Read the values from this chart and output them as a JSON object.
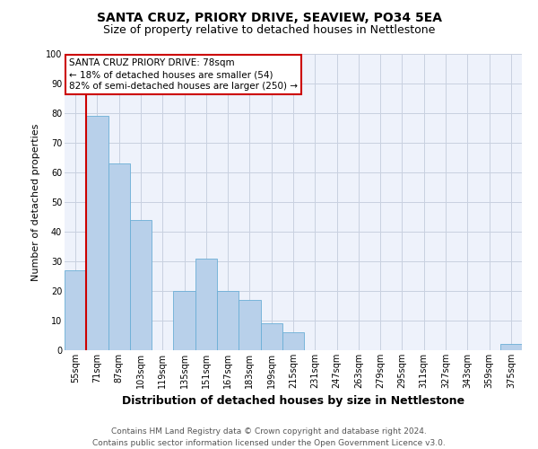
{
  "title": "SANTA CRUZ, PRIORY DRIVE, SEAVIEW, PO34 5EA",
  "subtitle": "Size of property relative to detached houses in Nettlestone",
  "xlabel": "Distribution of detached houses by size in Nettlestone",
  "ylabel": "Number of detached properties",
  "footer_line1": "Contains HM Land Registry data © Crown copyright and database right 2024.",
  "footer_line2": "Contains public sector information licensed under the Open Government Licence v3.0.",
  "annotation_line1": "SANTA CRUZ PRIORY DRIVE: 78sqm",
  "annotation_line2": "← 18% of detached houses are smaller (54)",
  "annotation_line3": "82% of semi-detached houses are larger (250) →",
  "bar_labels": [
    "55sqm",
    "71sqm",
    "87sqm",
    "103sqm",
    "119sqm",
    "135sqm",
    "151sqm",
    "167sqm",
    "183sqm",
    "199sqm",
    "215sqm",
    "231sqm",
    "247sqm",
    "263sqm",
    "279sqm",
    "295sqm",
    "311sqm",
    "327sqm",
    "343sqm",
    "359sqm",
    "375sqm"
  ],
  "bar_values": [
    27,
    79,
    63,
    44,
    0,
    20,
    31,
    20,
    17,
    9,
    6,
    0,
    0,
    0,
    0,
    0,
    0,
    0,
    0,
    0,
    2
  ],
  "bar_color": "#b8d0ea",
  "bar_edge_color": "#6aaed6",
  "vline_color": "#cc0000",
  "ylim": [
    0,
    100
  ],
  "yticks": [
    0,
    10,
    20,
    30,
    40,
    50,
    60,
    70,
    80,
    90,
    100
  ],
  "annotation_box_color": "#cc0000",
  "background_color": "#eef2fb",
  "grid_color": "#c8d0e0",
  "title_fontsize": 10,
  "subtitle_fontsize": 9,
  "ylabel_fontsize": 8,
  "xlabel_fontsize": 9,
  "tick_fontsize": 7,
  "ann_fontsize": 7.5,
  "footer_fontsize": 6.5
}
